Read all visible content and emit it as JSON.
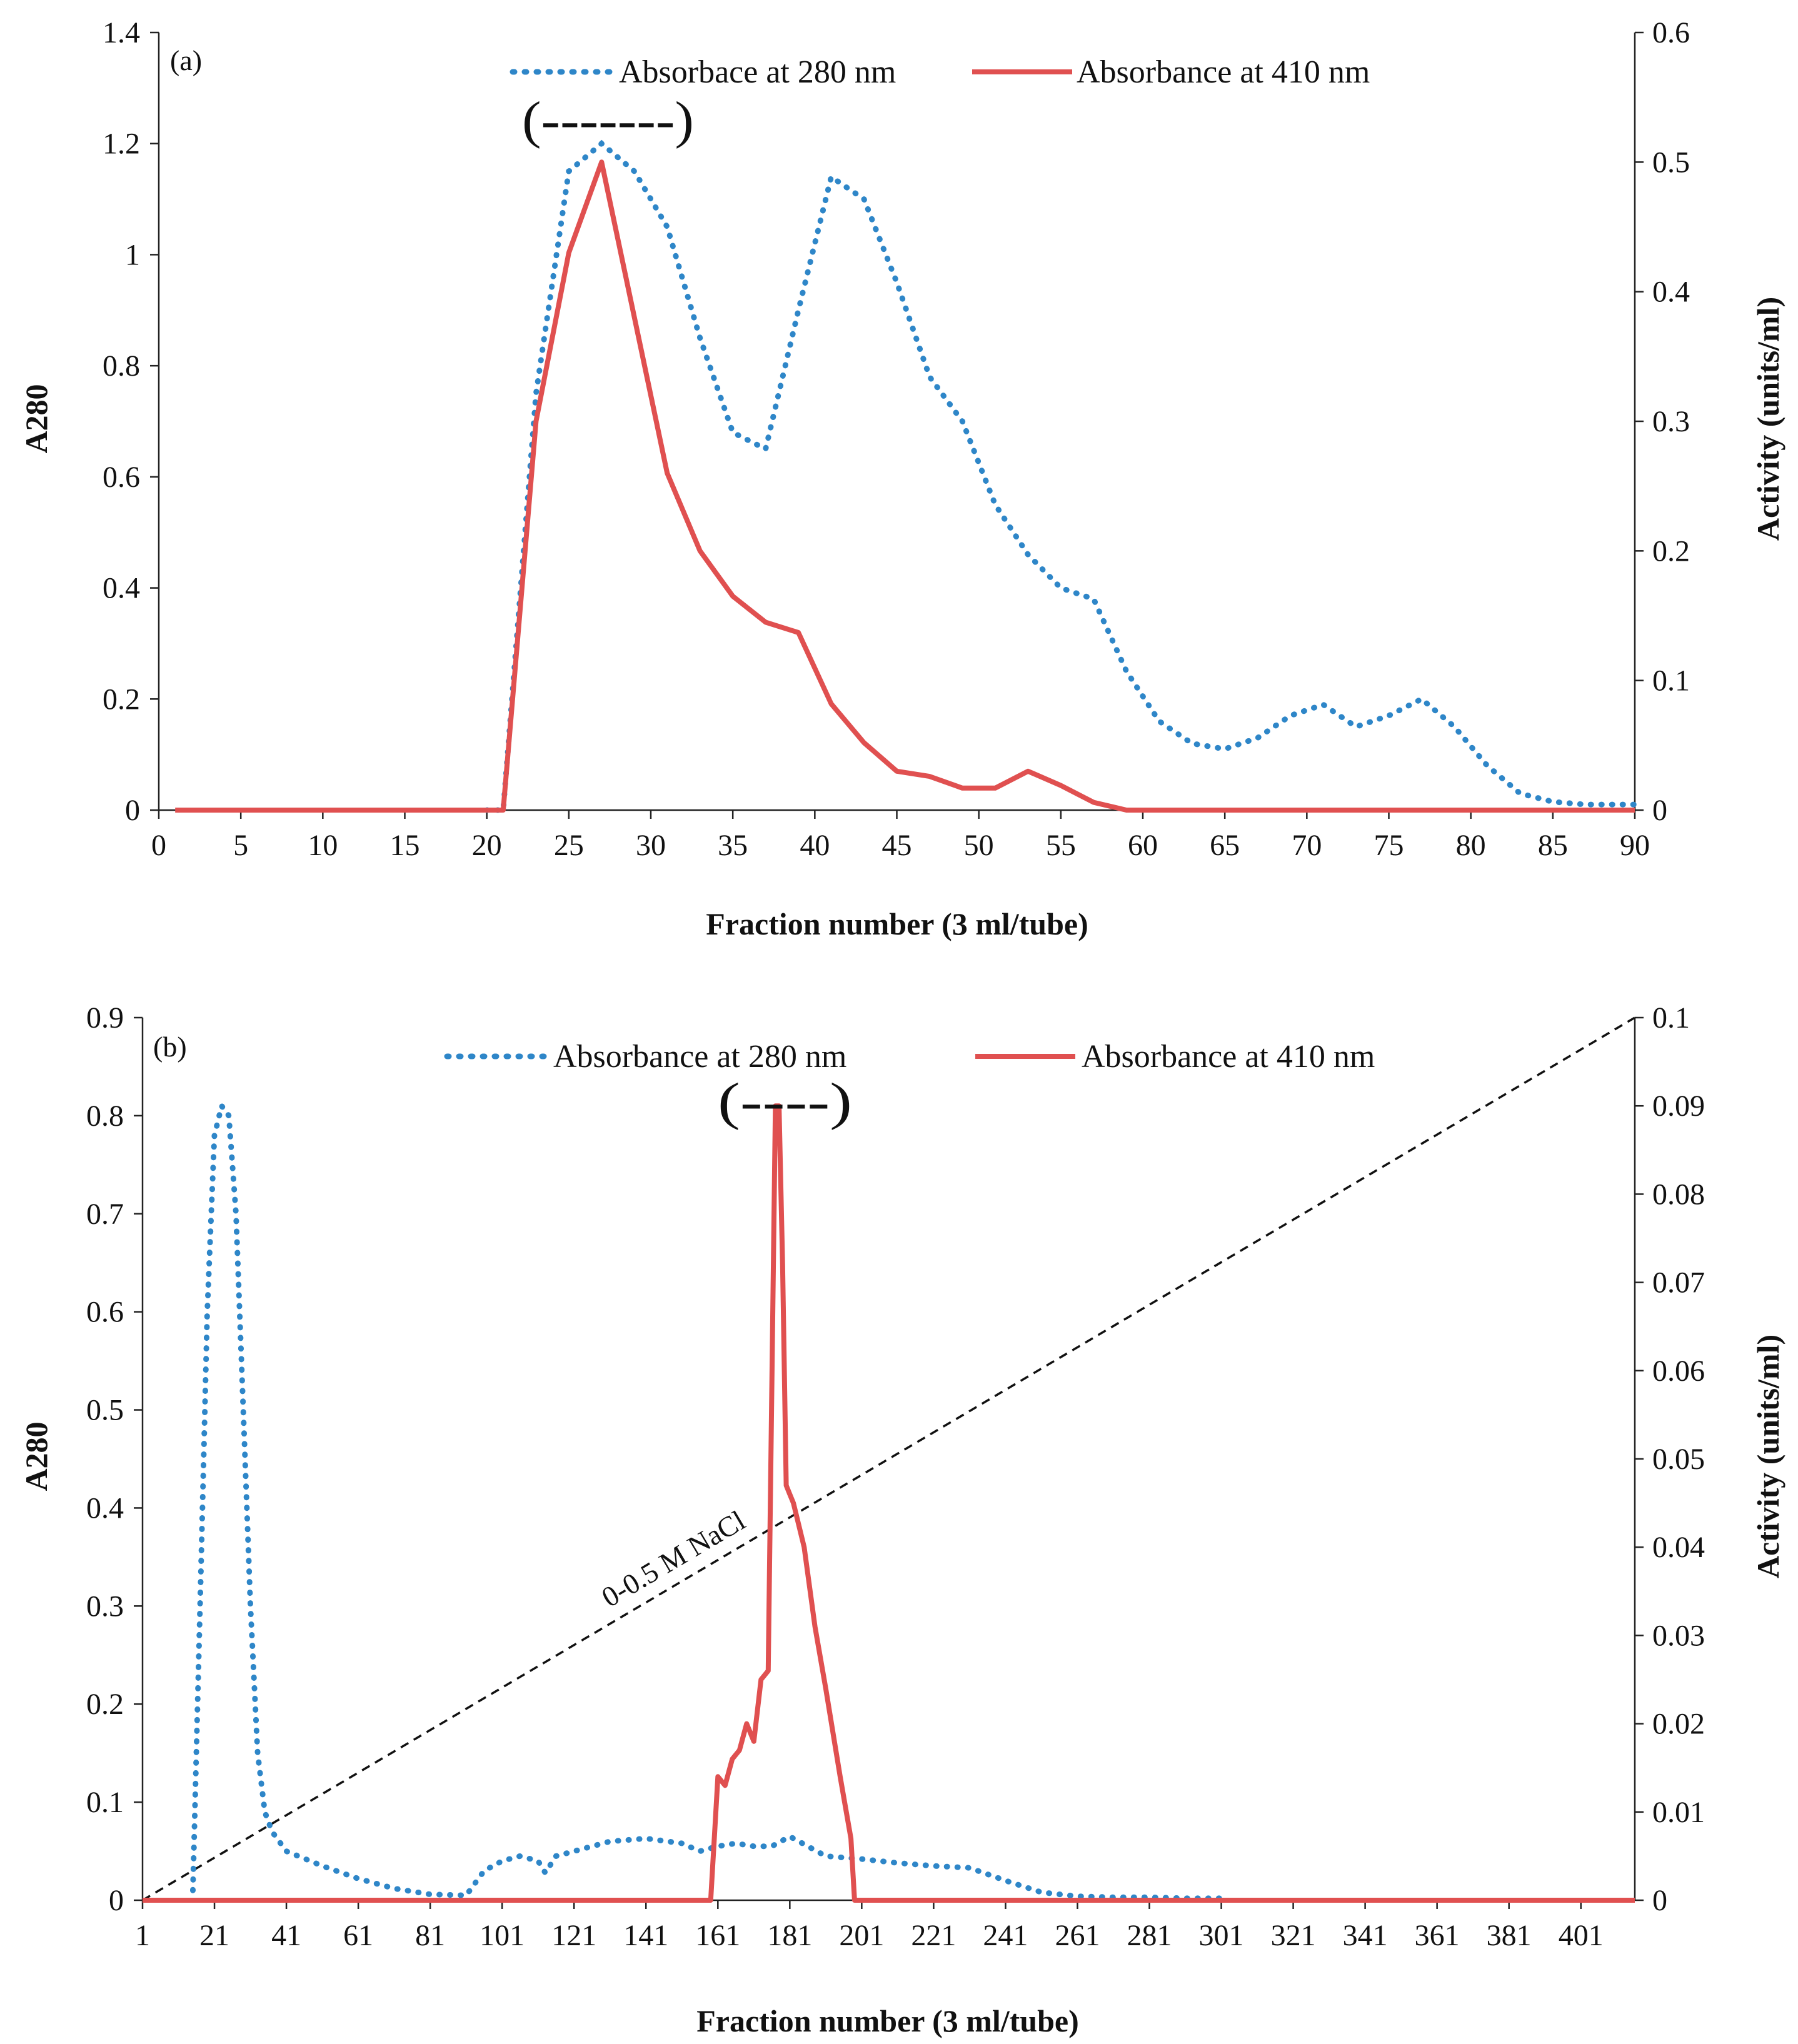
{
  "chart_data": [
    {
      "panel": "(a)",
      "type": "line",
      "xlabel": "Fraction number (3 ml/tube)",
      "ylabel": "A280",
      "y2label": "Activity (units/ml)",
      "xlim": [
        0,
        90
      ],
      "ylim": [
        0,
        1.4
      ],
      "y2lim": [
        0,
        0.6
      ],
      "xticks": [
        "0",
        "5",
        "10",
        "15",
        "20",
        "25",
        "30",
        "35",
        "40",
        "45",
        "50",
        "55",
        "60",
        "65",
        "70",
        "75",
        "80",
        "85",
        "90"
      ],
      "yticks": [
        "0",
        "0.2",
        "0.4",
        "0.6",
        "0.8",
        "1",
        "1.2",
        "1.4"
      ],
      "y2ticks": [
        "0",
        "0.1",
        "0.2",
        "0.3",
        "0.4",
        "0.5",
        "0.6"
      ],
      "bracket": "(-------)",
      "bracket_x": [
        25,
        35
      ],
      "series": [
        {
          "name": "Absorbace at 280 nm",
          "style": "dotted",
          "color": "#2E86C8",
          "axis": "left",
          "x": [
            20,
            21,
            23,
            25,
            27,
            29,
            31,
            33,
            35,
            37,
            39,
            41,
            43,
            45,
            47,
            49,
            51,
            53,
            55,
            57,
            59,
            61,
            63,
            65,
            67,
            69,
            71,
            73,
            75,
            77,
            79,
            81,
            83,
            85,
            87,
            89,
            90
          ],
          "y": [
            0.0,
            0.0,
            0.75,
            1.15,
            1.2,
            1.15,
            1.05,
            0.85,
            0.68,
            0.65,
            0.9,
            1.14,
            1.1,
            0.95,
            0.78,
            0.7,
            0.55,
            0.46,
            0.4,
            0.38,
            0.25,
            0.16,
            0.12,
            0.11,
            0.13,
            0.17,
            0.19,
            0.15,
            0.17,
            0.2,
            0.15,
            0.08,
            0.03,
            0.015,
            0.01,
            0.01,
            0.01
          ]
        },
        {
          "name": "Absorbance at 410 nm",
          "style": "solid",
          "color": "#E05050",
          "axis": "right",
          "x": [
            1,
            21,
            23,
            25,
            27,
            29,
            31,
            33,
            35,
            37,
            39,
            41,
            43,
            45,
            47,
            49,
            51,
            53,
            55,
            57,
            59,
            90
          ],
          "y": [
            0,
            0,
            0.3,
            0.43,
            0.5,
            0.38,
            0.26,
            0.2,
            0.165,
            0.145,
            0.137,
            0.082,
            0.052,
            0.03,
            0.026,
            0.017,
            0.017,
            0.03,
            0.019,
            0.006,
            0,
            0
          ]
        }
      ]
    },
    {
      "panel": "(b)",
      "type": "line",
      "xlabel": "Fraction number (3 ml/tube)",
      "ylabel": "A280",
      "y2label": "Activity (units/ml)",
      "xlim": [
        1,
        416
      ],
      "ylim": [
        0,
        0.9
      ],
      "y2lim": [
        0,
        0.1
      ],
      "xticks": [
        "1",
        "21",
        "41",
        "61",
        "81",
        "101",
        "121",
        "141",
        "161",
        "181",
        "201",
        "221",
        "241",
        "261",
        "281",
        "301",
        "321",
        "341",
        "361",
        "381",
        "401"
      ],
      "yticks": [
        "0",
        "0.1",
        "0.2",
        "0.3",
        "0.4",
        "0.5",
        "0.6",
        "0.7",
        "0.8",
        "0.9"
      ],
      "y2ticks": [
        "0",
        "0.01",
        "0.02",
        "0.03",
        "0.04",
        "0.05",
        "0.06",
        "0.07",
        "0.08",
        "0.09",
        "0.1"
      ],
      "bracket": "(----)",
      "bracket_x": [
        163,
        199
      ],
      "gradient_label": "0-0.5 M NaCl",
      "gradient_line": {
        "x": [
          1,
          416
        ],
        "y2": [
          0,
          0.1
        ]
      },
      "series": [
        {
          "name": "Absorbance at 280 nm",
          "style": "dotted",
          "color": "#2E86C8",
          "axis": "left",
          "x": [
            15,
            17,
            19,
            21,
            23,
            25,
            27,
            29,
            31,
            33,
            35,
            37,
            41,
            51,
            61,
            71,
            81,
            91,
            96,
            101,
            106,
            111,
            113,
            116,
            121,
            131,
            141,
            151,
            156,
            161,
            166,
            171,
            176,
            181,
            186,
            191,
            201,
            211,
            221,
            231,
            241,
            251,
            261,
            271,
            281,
            291,
            301
          ],
          "y": [
            0.01,
            0.3,
            0.6,
            0.78,
            0.81,
            0.8,
            0.7,
            0.5,
            0.3,
            0.15,
            0.09,
            0.07,
            0.05,
            0.035,
            0.022,
            0.012,
            0.006,
            0.005,
            0.03,
            0.04,
            0.045,
            0.04,
            0.028,
            0.045,
            0.05,
            0.06,
            0.063,
            0.058,
            0.05,
            0.055,
            0.058,
            0.055,
            0.055,
            0.065,
            0.055,
            0.045,
            0.042,
            0.038,
            0.035,
            0.033,
            0.02,
            0.008,
            0.004,
            0.003,
            0.003,
            0.002,
            0.002
          ]
        },
        {
          "name": "Absorbance at 410 nm",
          "style": "solid",
          "color": "#E05050",
          "axis": "right",
          "x": [
            1,
            159,
            161,
            163,
            165,
            167,
            169,
            171,
            173,
            175,
            177,
            178,
            179,
            180,
            181,
            182,
            185,
            188,
            191,
            195,
            198,
            199,
            416
          ],
          "y": [
            0,
            0,
            0.014,
            0.013,
            0.016,
            0.017,
            0.02,
            0.018,
            0.025,
            0.026,
            0.09,
            0.09,
            0.072,
            0.047,
            0.046,
            0.045,
            0.04,
            0.031,
            0.024,
            0.014,
            0.007,
            0,
            0
          ]
        }
      ]
    }
  ]
}
